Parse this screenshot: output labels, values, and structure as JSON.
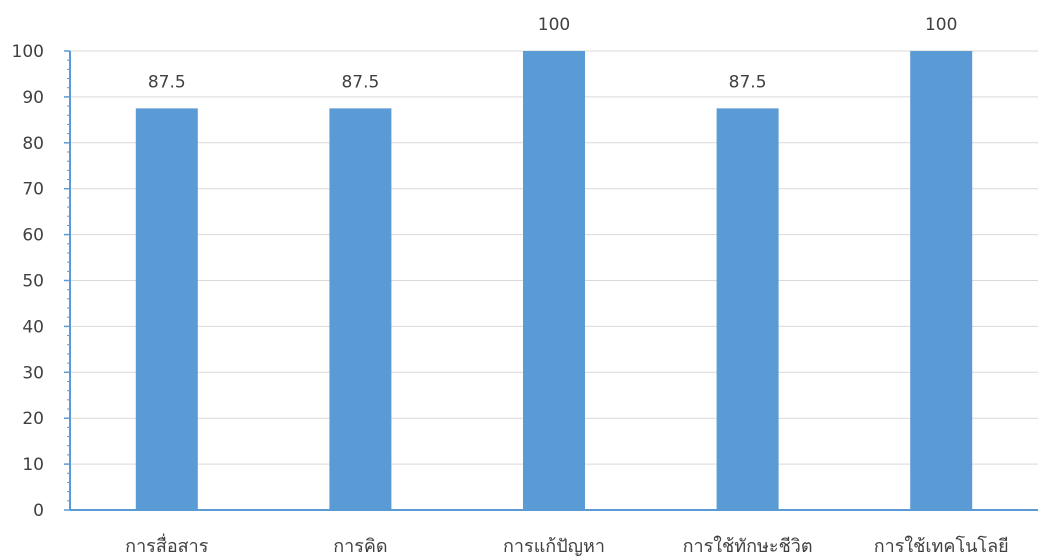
{
  "chart_data": {
    "type": "bar",
    "title": "",
    "xlabel": "",
    "ylabel": "",
    "categories": [
      "การสื่อสาร",
      "การคิด",
      "การแก้ปัญหา",
      "การใช้ทักษะชีวิต",
      "การใช้เทคโนโลยี"
    ],
    "values": [
      87.5,
      87.5,
      100,
      87.5,
      100
    ],
    "data_labels": [
      "87.5",
      "87.5",
      "100",
      "87.5",
      "100"
    ],
    "ylim": [
      0,
      100
    ],
    "yticks": [
      0,
      10,
      20,
      30,
      40,
      50,
      60,
      70,
      80,
      90,
      100
    ],
    "ytick_labels": [
      "0",
      "10",
      "20",
      "30",
      "40",
      "50",
      "60",
      "70",
      "80",
      "90",
      "100"
    ],
    "grid": true,
    "legend": "none",
    "colors": {
      "bar": "#5B9BD5",
      "axis": "#5B9BD5",
      "grid": "#D9D9D9",
      "text": "#404040"
    }
  }
}
